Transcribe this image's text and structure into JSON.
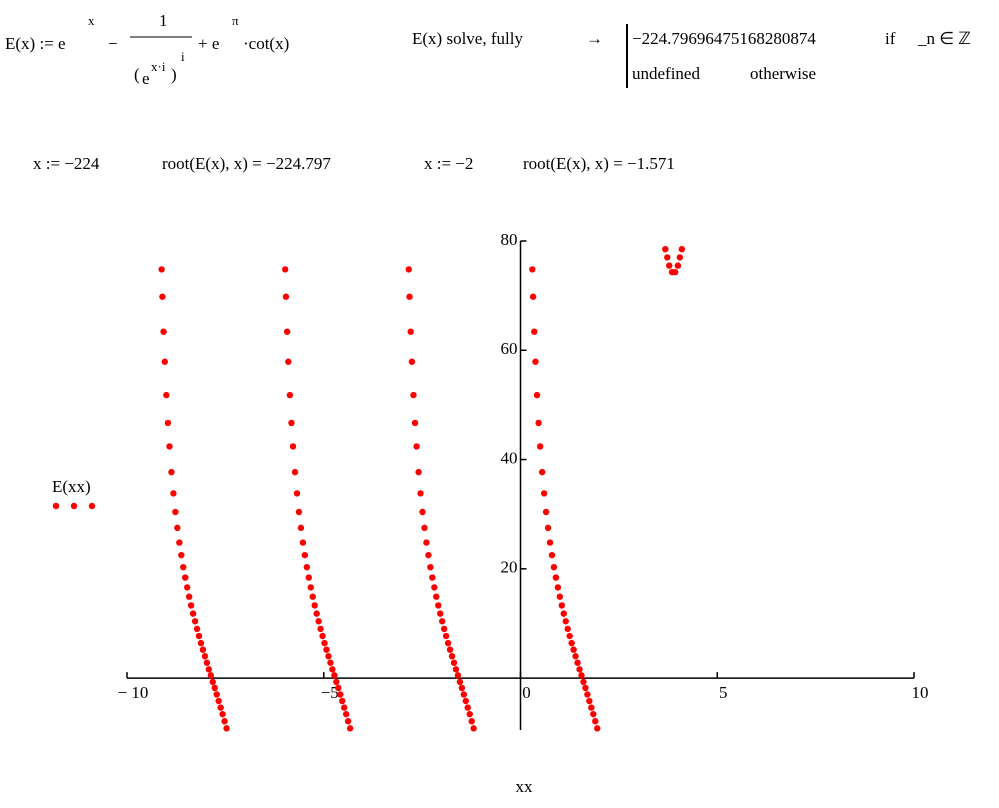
{
  "worksheet": {
    "definition": {
      "lhs": "E(x) := e",
      "t1_exp": "x",
      "minus": "−",
      "num": "1",
      "den_open": "(",
      "den_base": "e",
      "den_inner_exp": "x·i",
      "den_close": ")",
      "den_outer_exp": "i",
      "plus": "+ e",
      "t3_exp": "π",
      "t3_rest": "·cot(x)"
    },
    "solve": {
      "command": "E(x)  solve, fully",
      "arrow": "→",
      "cases": [
        [
          "−224.79696475168280874",
          "if",
          "_n ∈ ℤ"
        ],
        [
          "undefined",
          "otherwise"
        ]
      ]
    },
    "evaluations": [
      "x := −224",
      "root(E(x), x) = −224.797",
      "x := −2",
      "root(E(x), x) = −1.571"
    ]
  },
  "chart_data": {
    "type": "scatter",
    "x_label": "xx",
    "xlim": [
      -10,
      10
    ],
    "ylim": [
      -9.5,
      80
    ],
    "xticks": [
      {
        "value": -10,
        "label": "− 10"
      },
      {
        "value": -5,
        "label": "−5"
      },
      0,
      5,
      10
    ],
    "yticks": [
      20,
      40,
      60,
      80
    ],
    "series": [
      {
        "name": "E(xx)",
        "color": "#ff0000",
        "x": [
          -9.12,
          -9.1,
          -9.07,
          -9.04,
          -9.0,
          -8.96,
          -8.92,
          -8.87,
          -8.82,
          -8.77,
          -8.72,
          -8.67,
          -8.62,
          -8.57,
          -8.52,
          -8.47,
          -8.42,
          -8.37,
          -8.32,
          -8.27,
          -8.22,
          -8.17,
          -8.12,
          -8.07,
          -8.02,
          -7.97,
          -7.92,
          -7.87,
          -7.82,
          -7.77,
          -7.72,
          -7.67,
          -7.62,
          -7.57,
          -7.52,
          -7.47,
          -5.98,
          -5.96,
          -5.93,
          -5.9,
          -5.86,
          -5.82,
          -5.78,
          -5.73,
          -5.68,
          -5.63,
          -5.58,
          -5.53,
          -5.48,
          -5.43,
          -5.38,
          -5.33,
          -5.28,
          -5.23,
          -5.18,
          -5.13,
          -5.08,
          -5.03,
          -4.98,
          -4.93,
          -4.88,
          -4.83,
          -4.78,
          -4.73,
          -4.68,
          -4.63,
          -4.58,
          -4.53,
          -4.48,
          -4.43,
          -4.38,
          -4.33,
          -2.84,
          -2.82,
          -2.79,
          -2.76,
          -2.72,
          -2.68,
          -2.64,
          -2.59,
          -2.54,
          -2.49,
          -2.44,
          -2.39,
          -2.34,
          -2.29,
          -2.24,
          -2.19,
          -2.14,
          -2.09,
          -2.04,
          -1.99,
          -1.94,
          -1.89,
          -1.84,
          -1.79,
          -1.74,
          -1.69,
          -1.64,
          -1.59,
          -1.54,
          -1.49,
          -1.44,
          -1.39,
          -1.34,
          -1.29,
          -1.24,
          -1.19,
          0.3,
          0.32,
          0.35,
          0.38,
          0.42,
          0.46,
          0.5,
          0.55,
          0.6,
          0.65,
          0.7,
          0.75,
          0.8,
          0.85,
          0.9,
          0.95,
          1.0,
          1.05,
          1.1,
          1.15,
          1.2,
          1.25,
          1.3,
          1.35,
          1.4,
          1.45,
          1.5,
          1.55,
          1.6,
          1.65,
          1.7,
          1.75,
          1.8,
          1.85,
          1.9,
          1.95,
          3.68,
          3.73,
          3.78,
          3.85,
          3.93,
          4.0,
          4.05,
          4.1
        ],
        "values": [
          74.8,
          69.8,
          63.4,
          57.9,
          51.8,
          46.7,
          42.4,
          37.7,
          33.8,
          30.4,
          27.5,
          24.8,
          22.5,
          20.3,
          18.4,
          16.6,
          14.9,
          13.3,
          11.8,
          10.4,
          9.0,
          7.7,
          6.4,
          5.2,
          4.0,
          2.8,
          1.6,
          0.5,
          -0.7,
          -1.8,
          -3.0,
          -4.2,
          -5.4,
          -6.6,
          -7.9,
          -9.2,
          74.8,
          69.8,
          63.4,
          57.9,
          51.8,
          46.7,
          42.4,
          37.7,
          33.8,
          30.4,
          27.5,
          24.8,
          22.5,
          20.3,
          18.4,
          16.6,
          14.9,
          13.3,
          11.8,
          10.4,
          9.0,
          7.7,
          6.4,
          5.2,
          4.0,
          2.8,
          1.6,
          0.5,
          -0.7,
          -1.8,
          -3.0,
          -4.2,
          -5.4,
          -6.6,
          -7.9,
          -9.2,
          74.8,
          69.8,
          63.4,
          57.9,
          51.8,
          46.7,
          42.4,
          37.7,
          33.8,
          30.4,
          27.5,
          24.8,
          22.5,
          20.3,
          18.4,
          16.6,
          14.9,
          13.3,
          11.8,
          10.4,
          9.0,
          7.7,
          6.4,
          5.2,
          4.0,
          2.8,
          1.6,
          0.5,
          -0.7,
          -1.8,
          -3.0,
          -4.2,
          -5.4,
          -6.6,
          -7.9,
          -9.2,
          74.8,
          69.8,
          63.4,
          57.9,
          51.8,
          46.7,
          42.4,
          37.7,
          33.8,
          30.4,
          27.5,
          24.8,
          22.5,
          20.3,
          18.4,
          16.6,
          14.9,
          13.3,
          11.8,
          10.4,
          9.0,
          7.7,
          6.4,
          5.2,
          4.0,
          2.8,
          1.6,
          0.5,
          -0.7,
          -1.8,
          -3.0,
          -4.2,
          -5.4,
          -6.6,
          -7.9,
          -9.2,
          78.5,
          77.0,
          75.5,
          74.3,
          74.3,
          75.5,
          77.0,
          78.5
        ]
      }
    ]
  }
}
